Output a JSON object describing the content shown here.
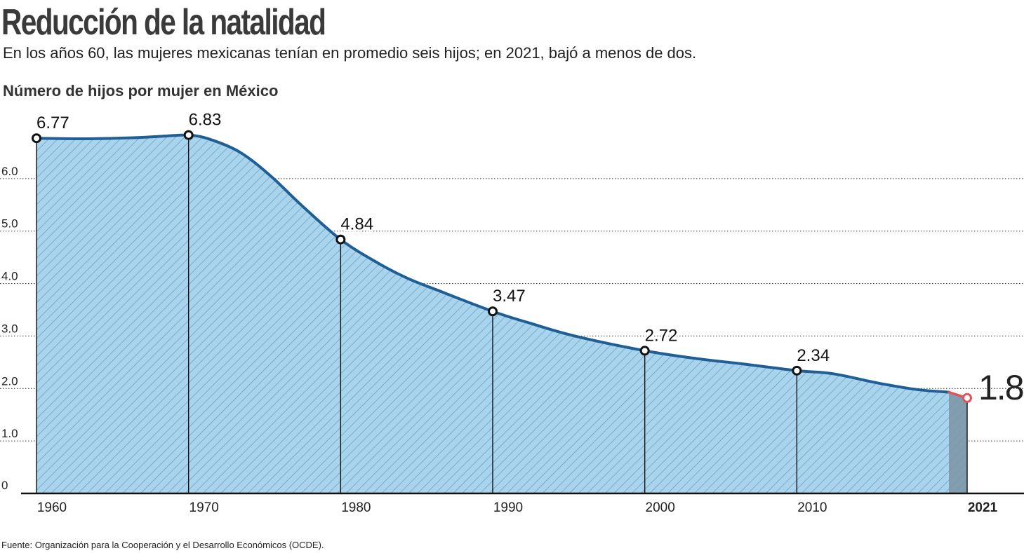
{
  "header": {
    "title": "Reducción de la natalidad",
    "subtitle": "En los años 60, las mujeres mexicanas tenían en promedio seis hijos; en 2021, bajó a menos de dos.",
    "chart_heading": "Número de hijos por mujer en México"
  },
  "footer": {
    "source": "Fuente: Organización para la Cooperación y el Desarrollo Económicos (OCDE)."
  },
  "colors": {
    "fill": "#a9d4ec",
    "hatch": "#4a8fbf",
    "line": "#1f5f95",
    "highlight": "#e8505b",
    "last_fill": "#7c97a8"
  },
  "chart_data": {
    "type": "area",
    "title": "Número de hijos por mujer en México",
    "xlabel": "",
    "ylabel": "",
    "xlim": [
      1959.6,
      2020.8
    ],
    "ylim": [
      0,
      7
    ],
    "y_ticks": [
      0,
      1.0,
      2.0,
      3.0,
      4.0,
      5.0,
      6.0
    ],
    "y_tick_labels": [
      "0",
      "1.0",
      "2.0",
      "3.0",
      "4.0",
      "5.0",
      "6.0"
    ],
    "x_ticks": [
      1960,
      1970,
      1980,
      1990,
      2000,
      2010,
      2021
    ],
    "x_tick_labels": [
      "1960",
      "1970",
      "1980",
      "1990",
      "2000",
      "2010",
      "2021"
    ],
    "gridlines": true,
    "series": [
      {
        "name": "Número de hijos por mujer",
        "x": [
          1959.6,
          1963,
          1966,
          1968,
          1969.6,
          1971,
          1973,
          1975,
          1977,
          1979.6,
          1982,
          1984,
          1986,
          1989.6,
          1992,
          1995,
          1999.6,
          2003,
          2006,
          2009.6,
          2012,
          2015,
          2017.5,
          2019.6,
          2020.8
        ],
        "values": [
          6.77,
          6.76,
          6.78,
          6.81,
          6.83,
          6.75,
          6.5,
          6.05,
          5.5,
          4.84,
          4.4,
          4.1,
          3.87,
          3.47,
          3.25,
          3.0,
          2.72,
          2.57,
          2.47,
          2.34,
          2.28,
          2.1,
          1.98,
          1.93,
          1.82
        ]
      }
    ],
    "markers": [
      {
        "year": 1959.6,
        "value": 6.77,
        "label": "6.77"
      },
      {
        "year": 1969.6,
        "value": 6.83,
        "label": "6.83"
      },
      {
        "year": 1979.6,
        "value": 4.84,
        "label": "4.84"
      },
      {
        "year": 1989.6,
        "value": 3.47,
        "label": "3.47"
      },
      {
        "year": 1999.6,
        "value": 2.72,
        "label": "2.72"
      },
      {
        "year": 2009.6,
        "value": 2.34,
        "label": "2.34"
      },
      {
        "year": 2020.8,
        "value": 1.82,
        "label": "1.82",
        "highlight": true
      }
    ]
  }
}
